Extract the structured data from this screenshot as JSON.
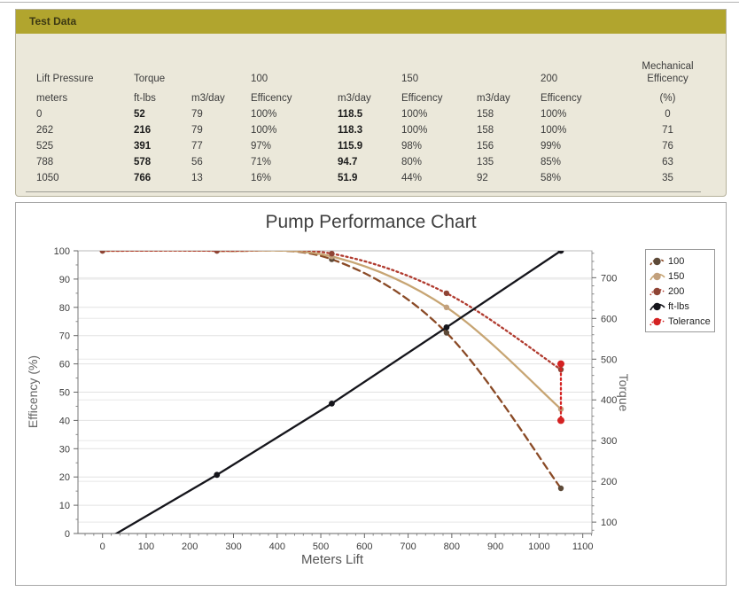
{
  "page": {
    "top_border_color": "#b3b3b3"
  },
  "table": {
    "title": "Test Data",
    "header_bg": "#b1a52e",
    "body_bg": "#ebe8da",
    "group_headers": [
      {
        "col": 1,
        "label": "Lift Pressure"
      },
      {
        "col": 2,
        "label": "Torque"
      },
      {
        "col": 4,
        "label": "100"
      },
      {
        "col": 6,
        "label": "150"
      },
      {
        "col": 8,
        "label": "200"
      },
      {
        "col": 9,
        "label": "Mechanical\nEfficency",
        "align": "center"
      }
    ],
    "sub_headers": [
      "meters",
      "ft-lbs",
      "m3/day",
      "Efficency",
      "m3/day",
      "Efficency",
      "m3/day",
      "Efficency",
      "(%)"
    ],
    "bold_columns": [
      1,
      4
    ],
    "rows": [
      [
        "0",
        "52",
        "79",
        "100%",
        "118.5",
        "100%",
        "158",
        "100%",
        "0"
      ],
      [
        "262",
        "216",
        "79",
        "100%",
        "118.3",
        "100%",
        "158",
        "100%",
        "71"
      ],
      [
        "525",
        "391",
        "77",
        "97%",
        "115.9",
        "98%",
        "156",
        "99%",
        "76"
      ],
      [
        "788",
        "578",
        "56",
        "71%",
        "94.7",
        "80%",
        "135",
        "85%",
        "63"
      ],
      [
        "1050",
        "766",
        "13",
        "16%",
        "51.9",
        "44%",
        "92",
        "58%",
        "35"
      ]
    ]
  },
  "chart_data": {
    "type": "line",
    "title": "Pump Performance Chart",
    "xlabel": "Meters Lift",
    "ylabel_left": "Efficency (%)",
    "ylabel_right": "Torque",
    "x": [
      0,
      262,
      525,
      788,
      1050
    ],
    "x_ticks": [
      0,
      100,
      200,
      300,
      400,
      500,
      600,
      700,
      800,
      900,
      1000,
      1100
    ],
    "left_axis": {
      "min": 0,
      "max": 100,
      "ticks": [
        0,
        10,
        20,
        30,
        40,
        50,
        60,
        70,
        80,
        90,
        100
      ]
    },
    "right_axis": {
      "min": 72,
      "max": 766,
      "ticks": [
        100,
        200,
        300,
        400,
        500,
        600,
        700
      ]
    },
    "grid": true,
    "legend_position": "right",
    "series": [
      {
        "name": "100",
        "axis": "left",
        "values": [
          100,
          100,
          97,
          71,
          16
        ],
        "color": "#8a4a26",
        "marker_color": "#5d4a38",
        "style": "dashed",
        "smooth": true,
        "marker_r": 3.2
      },
      {
        "name": "150",
        "axis": "left",
        "values": [
          100,
          100,
          98,
          80,
          44
        ],
        "color": "#c7a573",
        "marker_color": "#c2a07c",
        "style": "solid",
        "smooth": true,
        "marker_r": 3.2
      },
      {
        "name": "200",
        "axis": "left",
        "values": [
          100,
          100,
          99,
          85,
          58
        ],
        "color": "#b03a2e",
        "marker_color": "#8f4435",
        "style": "dotted",
        "smooth": true,
        "marker_r": 3.2
      },
      {
        "name": "ft-lbs",
        "axis": "right",
        "values": [
          52,
          216,
          391,
          578,
          766
        ],
        "color": "#15151b",
        "marker_color": "#15151b",
        "style": "solid",
        "smooth": false,
        "marker_r": 3.4
      },
      {
        "name": "Tolerance",
        "axis": "left",
        "x": [
          1050,
          1050
        ],
        "values": [
          60,
          40
        ],
        "color": "#d42222",
        "marker_color": "#d42222",
        "style": "dotted",
        "smooth": false,
        "marker_r": 4
      }
    ]
  }
}
